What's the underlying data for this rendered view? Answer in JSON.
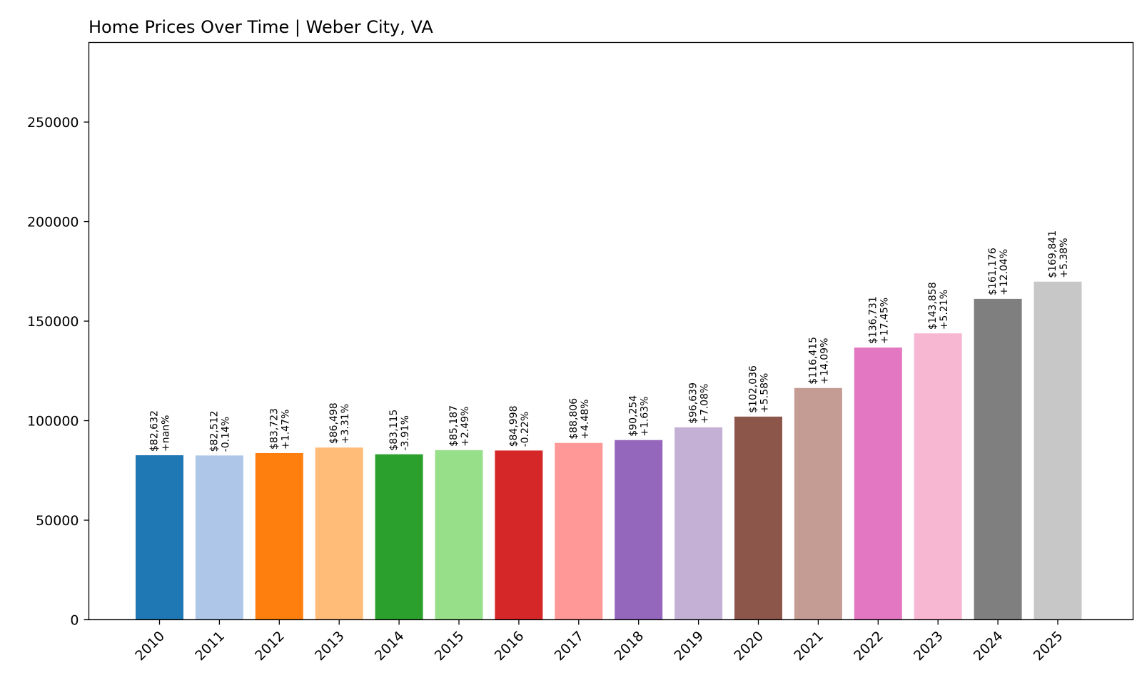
{
  "chart_data": {
    "type": "bar",
    "title": "Home Prices Over Time | Weber City, VA",
    "xlabel": "",
    "ylabel": "",
    "ylim": [
      0,
      290000
    ],
    "yticks": [
      0,
      50000,
      100000,
      150000,
      200000,
      250000
    ],
    "grid": false,
    "categories": [
      "2010",
      "2011",
      "2012",
      "2013",
      "2014",
      "2015",
      "2016",
      "2017",
      "2018",
      "2019",
      "2020",
      "2021",
      "2022",
      "2023",
      "2024",
      "2025"
    ],
    "values": [
      82632,
      82512,
      83723,
      86498,
      83115,
      85187,
      84998,
      88806,
      90254,
      96639,
      102036,
      116415,
      136731,
      143858,
      161176,
      169841
    ],
    "value_labels": [
      "$82,632",
      "$82,512",
      "$83,723",
      "$86,498",
      "$83,115",
      "$85,187",
      "$84,998",
      "$88,806",
      "$90,254",
      "$96,639",
      "$102,036",
      "$116,415",
      "$136,731",
      "$143,858",
      "$161,176",
      "$169,841"
    ],
    "change_labels": [
      "+nan%",
      "-0.14%",
      "+1.47%",
      "+3.31%",
      "-3.91%",
      "+2.49%",
      "-0.22%",
      "+4.48%",
      "+1.63%",
      "+7.08%",
      "+5.58%",
      "+14.09%",
      "+17.45%",
      "+5.21%",
      "+12.04%",
      "+5.38%"
    ],
    "colors": [
      "#1f77b4",
      "#aec7e8",
      "#ff7f0e",
      "#ffbb78",
      "#2ca02c",
      "#98df8a",
      "#d62728",
      "#ff9896",
      "#9467bd",
      "#c5b0d5",
      "#8c564b",
      "#c49c94",
      "#e377c2",
      "#f7b6d2",
      "#7f7f7f",
      "#c7c7c7"
    ]
  }
}
